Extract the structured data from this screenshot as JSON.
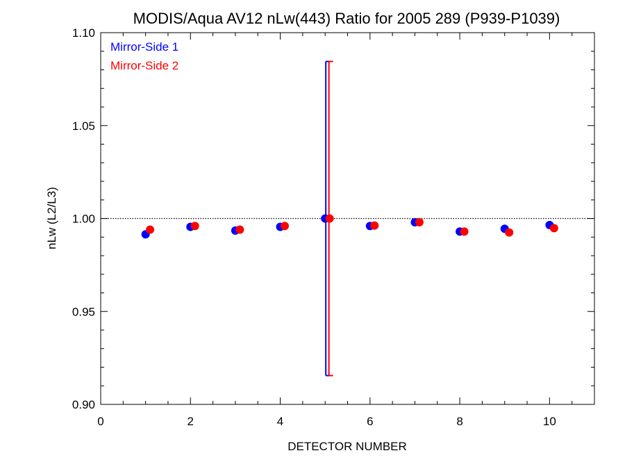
{
  "chart_data": {
    "type": "scatter",
    "title": "MODIS/Aqua AV12 nLw(443) Ratio for 2005 289 (P939-P1039)",
    "xlabel": "DETECTOR NUMBER",
    "ylabel": "nLw (L2/L3)",
    "xlim": [
      0,
      11
    ],
    "ylim": [
      0.9,
      1.1
    ],
    "x_ticks": [
      0,
      2,
      4,
      6,
      8,
      10
    ],
    "x_tick_labels": [
      "0",
      "2",
      "4",
      "6",
      "8",
      "10"
    ],
    "y_ticks": [
      0.9,
      0.95,
      1.0,
      1.05,
      1.1
    ],
    "y_tick_labels": [
      "0.90",
      "0.95",
      "1.00",
      "1.05",
      "1.10"
    ],
    "reference_line": 1.0,
    "legend_position": "top-left",
    "series": [
      {
        "name": "Mirror-Side 1",
        "color": "#0000ff",
        "x": [
          1,
          2,
          3,
          4,
          5,
          6,
          7,
          8,
          9,
          10
        ],
        "y": [
          0.9915,
          0.9955,
          0.9935,
          0.9955,
          1.0,
          0.996,
          0.998,
          0.993,
          0.9945,
          0.9965
        ],
        "error_bars": [
          {
            "x": 5,
            "low": 0.9155,
            "high": 1.0845
          }
        ]
      },
      {
        "name": "Mirror-Side 2",
        "color": "#ff0000",
        "x": [
          1.1,
          2.1,
          3.1,
          4.1,
          5.1,
          6.1,
          7.1,
          8.1,
          9.1,
          10.1
        ],
        "y": [
          0.994,
          0.996,
          0.994,
          0.996,
          1.0,
          0.9962,
          0.998,
          0.993,
          0.9925,
          0.9948
        ],
        "error_bars": [
          {
            "x": 5.1,
            "low": 0.9155,
            "high": 1.0845
          }
        ]
      }
    ]
  }
}
